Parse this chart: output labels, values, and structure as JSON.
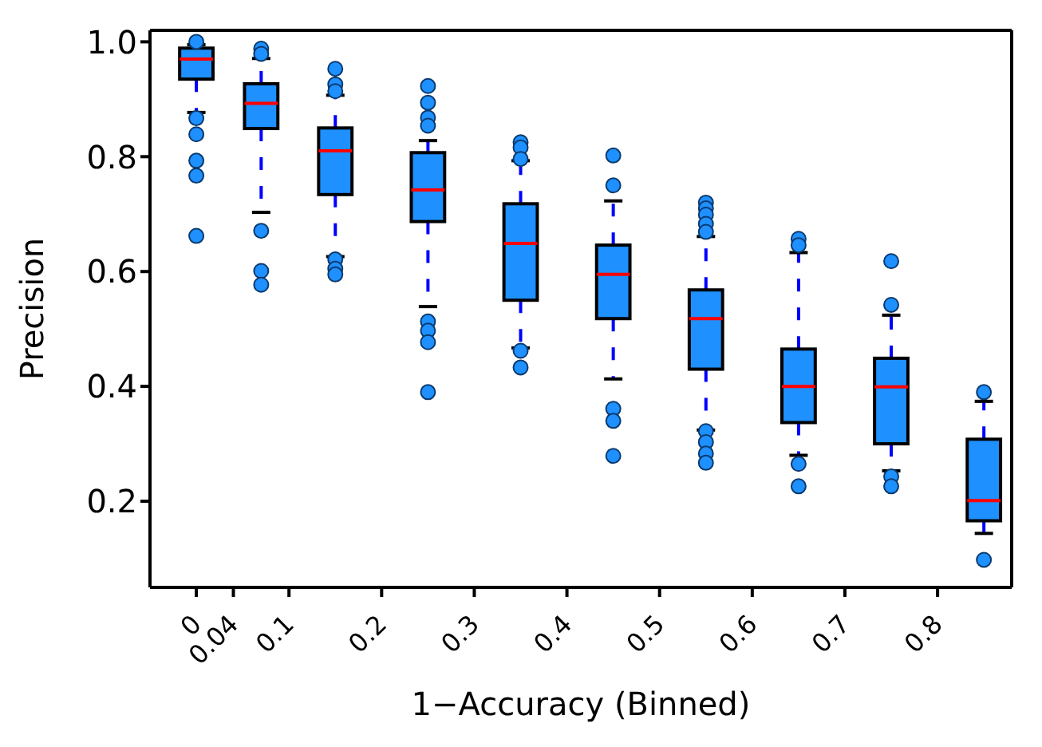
{
  "chart_data": {
    "type": "box",
    "xlabel": "1−Accuracy (Binned)",
    "ylabel": "Precision",
    "color": "#1e90ff",
    "x": [
      0,
      0.07,
      0.15,
      0.25,
      0.35,
      0.45,
      0.55,
      0.65,
      0.75,
      0.85
    ],
    "xlim": [
      -0.05,
      0.88
    ],
    "xticks": [
      0,
      0.04,
      0.1,
      0.2,
      0.3,
      0.4,
      0.5,
      0.6,
      0.7,
      0.8
    ],
    "ylim": [
      0.05,
      1.02
    ],
    "yticks": [
      {
        "value": 0.2,
        "label": "0.2"
      },
      {
        "value": 0.4,
        "label": "0.4"
      },
      {
        "value": 0.6,
        "label": "0.6"
      },
      {
        "value": 0.8,
        "label": "0.8"
      },
      {
        "value": 1,
        "label": "1.0"
      }
    ],
    "boxes": [
      {
        "low": 0.877,
        "q1": 0.935,
        "median": 0.97,
        "q3": 0.989,
        "high": 0.995,
        "outliers": [
          1.0,
          0.867,
          0.839,
          0.793,
          0.767,
          0.662
        ]
      },
      {
        "low": 0.703,
        "q1": 0.849,
        "median": 0.893,
        "q3": 0.927,
        "high": 0.971,
        "outliers": [
          0.988,
          0.979,
          0.671,
          0.601,
          0.577
        ]
      },
      {
        "low": 0.626,
        "q1": 0.734,
        "median": 0.81,
        "q3": 0.85,
        "high": 0.907,
        "outliers": [
          0.953,
          0.926,
          0.914,
          0.621,
          0.605,
          0.595
        ]
      },
      {
        "low": 0.539,
        "q1": 0.687,
        "median": 0.742,
        "q3": 0.807,
        "high": 0.828,
        "outliers": [
          0.923,
          0.894,
          0.868,
          0.854,
          0.513,
          0.497,
          0.477,
          0.39
        ]
      },
      {
        "low": 0.467,
        "q1": 0.55,
        "median": 0.649,
        "q3": 0.718,
        "high": 0.793,
        "outliers": [
          0.825,
          0.816,
          0.796,
          0.462,
          0.433
        ]
      },
      {
        "low": 0.413,
        "q1": 0.518,
        "median": 0.595,
        "q3": 0.646,
        "high": 0.723,
        "outliers": [
          0.802,
          0.75,
          0.361,
          0.34,
          0.279
        ]
      },
      {
        "low": 0.324,
        "q1": 0.43,
        "median": 0.518,
        "q3": 0.568,
        "high": 0.661,
        "outliers": [
          0.72,
          0.71,
          0.699,
          0.683,
          0.669,
          0.322,
          0.303,
          0.283,
          0.267
        ]
      },
      {
        "low": 0.28,
        "q1": 0.337,
        "median": 0.4,
        "q3": 0.465,
        "high": 0.633,
        "outliers": [
          0.657,
          0.646,
          0.265,
          0.226
        ]
      },
      {
        "low": 0.253,
        "q1": 0.3,
        "median": 0.399,
        "q3": 0.449,
        "high": 0.524,
        "outliers": [
          0.618,
          0.542,
          0.243,
          0.226
        ]
      },
      {
        "low": 0.144,
        "q1": 0.166,
        "median": 0.201,
        "q3": 0.308,
        "high": 0.374,
        "outliers": [
          0.39,
          0.098
        ]
      }
    ]
  }
}
